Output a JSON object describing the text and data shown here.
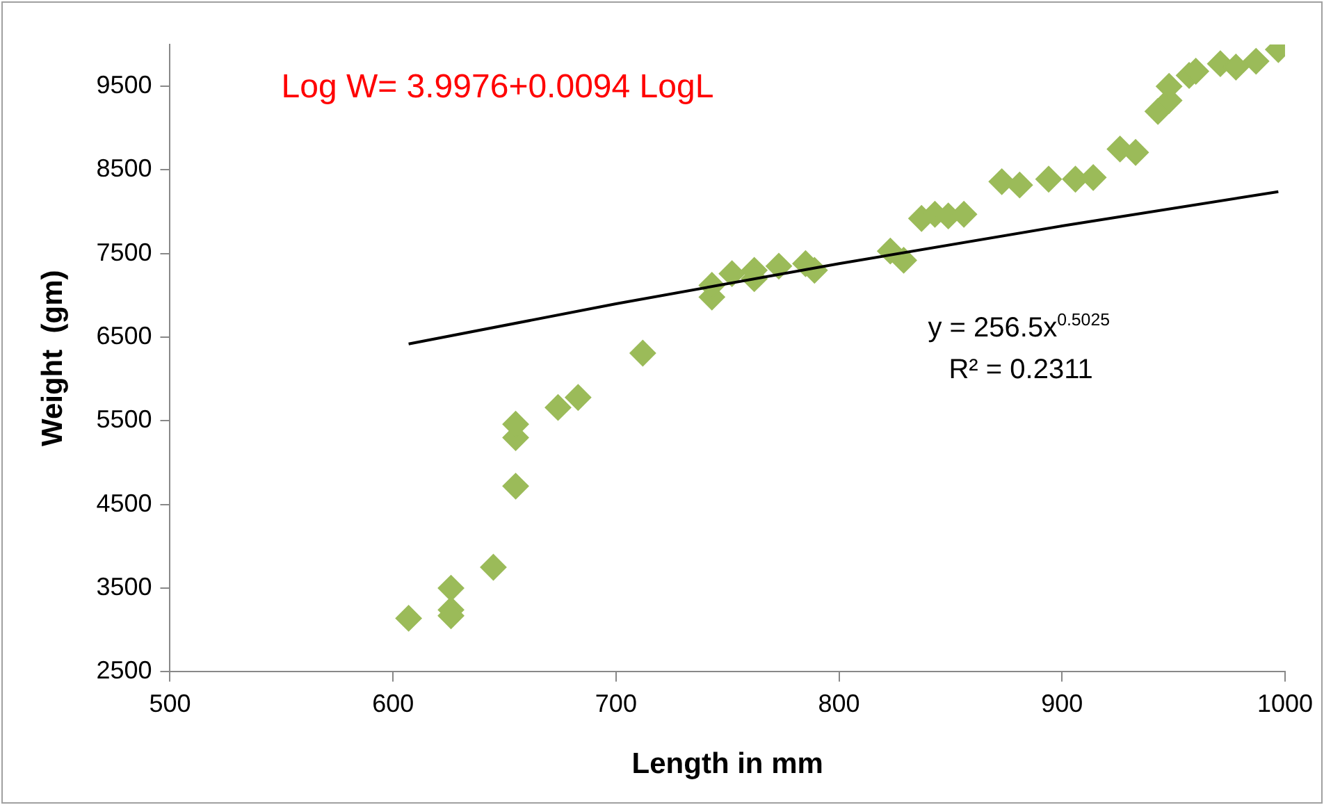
{
  "chart_data": {
    "type": "scatter",
    "xlabel": "Length in mm",
    "ylabel": "Weight  (gm)",
    "xlim": [
      500,
      1000
    ],
    "xticks": [
      500,
      600,
      700,
      800,
      900,
      1000
    ],
    "ylim": [
      2500,
      10000
    ],
    "yticks": [
      2500,
      3500,
      4500,
      5500,
      6500,
      7500,
      8500,
      9500
    ],
    "grid": false,
    "legend": false,
    "marker": "diamond",
    "annotations": [
      "Log W= 3.9976+0.0094 LogL",
      "y = 256.5x$^{0.5025}$",
      "R² = 0.2311"
    ],
    "series": [
      {
        "type": "scatter",
        "color": "#9bbb59",
        "x": [
          607,
          626,
          626,
          626,
          645,
          655,
          655,
          655,
          674,
          683,
          712,
          743,
          743,
          752,
          762,
          762,
          773,
          785,
          789,
          823,
          829,
          837,
          843,
          849,
          856,
          873,
          881,
          894,
          906,
          914,
          926,
          933,
          943,
          948,
          948,
          957,
          960,
          971,
          978,
          987,
          997
        ],
        "values": [
          3140,
          3500,
          3240,
          3170,
          3750,
          4720,
          5300,
          5460,
          5660,
          5780,
          6310,
          6980,
          7120,
          7260,
          7300,
          7200,
          7350,
          7380,
          7300,
          7530,
          7420,
          7920,
          7970,
          7950,
          7970,
          8360,
          8320,
          8390,
          8390,
          8410,
          8750,
          8710,
          9200,
          9330,
          9500,
          9630,
          9680,
          9770,
          9730,
          9800,
          9940
        ]
      },
      {
        "type": "line",
        "color": "#000000",
        "marker": "none",
        "x": [
          607,
          700,
          800,
          900,
          997
        ],
        "values": [
          6420,
          6900,
          7380,
          7830,
          8240
        ]
      }
    ]
  }
}
